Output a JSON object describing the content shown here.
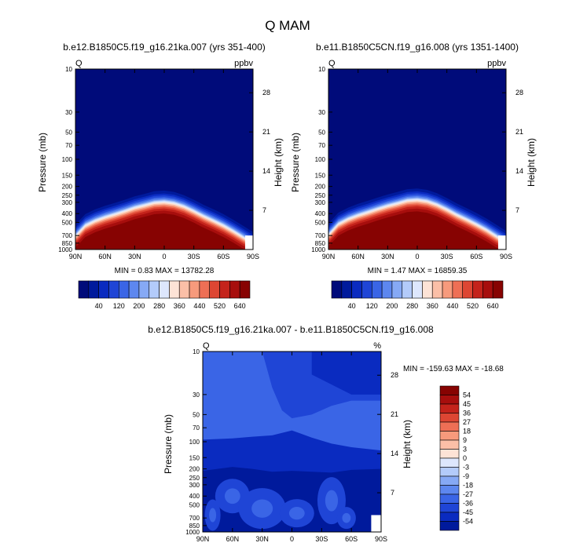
{
  "figure": {
    "title": "Q MAM"
  },
  "colors": {
    "main_scale": [
      "#000b7a",
      "#001a9c",
      "#0a2bc0",
      "#1f45d6",
      "#3a65e6",
      "#5d87ef",
      "#86a9f5",
      "#b3cbfa",
      "#dde7fd",
      "#fde3d6",
      "#fbbfa7",
      "#f79a7c",
      "#ee6f55",
      "#dd4633",
      "#c4231b",
      "#a70e0d",
      "#870302"
    ],
    "diff_scale": [
      "#001a9c",
      "#0a2bc0",
      "#1f45d6",
      "#3a65e6",
      "#5d87ef",
      "#86a9f5",
      "#b3cbfa",
      "#dde7fd",
      "#fde3d6",
      "#fbbfa7",
      "#f79a7c",
      "#ee6f55",
      "#dd4633",
      "#c4231b",
      "#a70e0d",
      "#870302"
    ]
  },
  "chart_data": [
    {
      "type": "heatmap",
      "title": "b.e12.B1850C5.f19_g16.21ka.007 (yrs 351-400)",
      "left_label": "Q",
      "right_label": "ppbv",
      "ylabel": "Pressure (mb)",
      "ylabel_right": "Height (km)",
      "x_ticks": [
        "90N",
        "60N",
        "30N",
        "0",
        "30S",
        "60S",
        "90S"
      ],
      "x_values": [
        90,
        60,
        30,
        0,
        -30,
        -60,
        -90
      ],
      "y_ticks": [
        "10",
        "30",
        "50",
        "70",
        "100",
        "150",
        "200",
        "250",
        "300",
        "400",
        "500",
        "700",
        "850",
        "1000"
      ],
      "y_values": [
        10,
        30,
        50,
        70,
        100,
        150,
        200,
        250,
        300,
        400,
        500,
        700,
        850,
        1000
      ],
      "height_ticks": [
        "28",
        "21",
        "14",
        "7"
      ],
      "height_values": [
        28,
        21,
        14,
        7
      ],
      "ylim": [
        10,
        1000
      ],
      "y_scale": "log",
      "stats": "MIN =   0.83   MAX = 13782.28",
      "colorbar_labels": [
        "40",
        "120",
        "200",
        "280",
        "360",
        "440",
        "520",
        "640"
      ],
      "levels": [
        20,
        40,
        80,
        120,
        160,
        200,
        240,
        280,
        320,
        360,
        400,
        440,
        480,
        520,
        580,
        640
      ],
      "moisture_boundary_hPa": [
        [
          90,
          680
        ],
        [
          80,
          520
        ],
        [
          70,
          460
        ],
        [
          60,
          420
        ],
        [
          50,
          390
        ],
        [
          40,
          360
        ],
        [
          30,
          330
        ],
        [
          20,
          310
        ],
        [
          10,
          290
        ],
        [
          0,
          285
        ],
        [
          -10,
          295
        ],
        [
          -20,
          320
        ],
        [
          -30,
          360
        ],
        [
          -40,
          410
        ],
        [
          -50,
          460
        ],
        [
          -60,
          520
        ],
        [
          -70,
          600
        ],
        [
          -80,
          700
        ],
        [
          -90,
          820
        ]
      ]
    },
    {
      "type": "heatmap",
      "title": "b.e11.B1850C5CN.f19_g16.008 (yrs 1351-1400)",
      "left_label": "Q",
      "right_label": "ppbv",
      "ylabel": "Pressure (mb)",
      "ylabel_right": "Height (km)",
      "x_ticks": [
        "90N",
        "60N",
        "30N",
        "0",
        "30S",
        "60S",
        "90S"
      ],
      "x_values": [
        90,
        60,
        30,
        0,
        -30,
        -60,
        -90
      ],
      "y_ticks": [
        "10",
        "30",
        "50",
        "70",
        "100",
        "150",
        "200",
        "250",
        "300",
        "400",
        "500",
        "700",
        "850",
        "1000"
      ],
      "y_values": [
        10,
        30,
        50,
        70,
        100,
        150,
        200,
        250,
        300,
        400,
        500,
        700,
        850,
        1000
      ],
      "height_ticks": [
        "28",
        "21",
        "14",
        "7"
      ],
      "height_values": [
        28,
        21,
        14,
        7
      ],
      "ylim": [
        10,
        1000
      ],
      "y_scale": "log",
      "stats": "MIN =   1.47   MAX = 16859.35",
      "colorbar_labels": [
        "40",
        "120",
        "200",
        "280",
        "360",
        "440",
        "520",
        "640"
      ],
      "levels": [
        20,
        40,
        80,
        120,
        160,
        200,
        240,
        280,
        320,
        360,
        400,
        440,
        480,
        520,
        580,
        640
      ],
      "moisture_boundary_hPa": [
        [
          90,
          660
        ],
        [
          80,
          500
        ],
        [
          70,
          440
        ],
        [
          60,
          400
        ],
        [
          50,
          370
        ],
        [
          40,
          340
        ],
        [
          30,
          315
        ],
        [
          20,
          295
        ],
        [
          10,
          275
        ],
        [
          0,
          270
        ],
        [
          -10,
          280
        ],
        [
          -20,
          305
        ],
        [
          -30,
          345
        ],
        [
          -40,
          395
        ],
        [
          -50,
          445
        ],
        [
          -60,
          505
        ],
        [
          -70,
          580
        ],
        [
          -80,
          680
        ],
        [
          -90,
          800
        ]
      ]
    },
    {
      "type": "heatmap",
      "title": "b.e12.B1850C5.f19_g16.21ka.007 - b.e11.B1850C5CN.f19_g16.008",
      "left_label": "Q",
      "right_label": "%",
      "ylabel": "Pressure (mb)",
      "ylabel_right": "Height (km)",
      "x_ticks": [
        "90N",
        "60N",
        "30N",
        "0",
        "30S",
        "60S",
        "90S"
      ],
      "x_values": [
        90,
        60,
        30,
        0,
        -30,
        -60,
        -90
      ],
      "y_ticks": [
        "10",
        "30",
        "50",
        "70",
        "100",
        "150",
        "200",
        "250",
        "300",
        "400",
        "500",
        "700",
        "850",
        "1000"
      ],
      "y_values": [
        10,
        30,
        50,
        70,
        100,
        150,
        200,
        250,
        300,
        400,
        500,
        700,
        850,
        1000
      ],
      "height_ticks": [
        "28",
        "21",
        "14",
        "7"
      ],
      "height_values": [
        28,
        21,
        14,
        7
      ],
      "ylim": [
        10,
        1000
      ],
      "y_scale": "log",
      "stats": "MIN = -159.63   MAX = -18.68",
      "colorbar_labels": [
        "54",
        "45",
        "36",
        "27",
        "18",
        "9",
        "3",
        "0",
        "-3",
        "-9",
        "-18",
        "-27",
        "-36",
        "-45",
        "-54"
      ],
      "levels": [
        -54,
        -45,
        -36,
        -27,
        -18,
        -9,
        -3,
        0,
        3,
        9,
        18,
        27,
        36,
        45,
        54
      ],
      "regions": {
        "upper_boundary_hPa": [
          [
            90,
            95
          ],
          [
            60,
            92
          ],
          [
            40,
            88
          ],
          [
            20,
            85
          ],
          [
            0,
            75
          ],
          [
            -20,
            90
          ],
          [
            -40,
            105
          ],
          [
            -60,
            115
          ],
          [
            -90,
            125
          ]
        ],
        "stratosphere_boundary_hPa": [
          [
            90,
            10
          ],
          [
            30,
            10
          ],
          [
            20,
            25
          ],
          [
            10,
            45
          ],
          [
            0,
            55
          ],
          [
            -20,
            50
          ],
          [
            -40,
            40
          ],
          [
            -60,
            35
          ],
          [
            -90,
            35
          ]
        ],
        "tropopause_band_hPa": [
          [
            90,
            210
          ],
          [
            60,
            190
          ],
          [
            40,
            200
          ],
          [
            20,
            215
          ],
          [
            0,
            210
          ],
          [
            -20,
            215
          ],
          [
            -40,
            220
          ],
          [
            -60,
            205
          ],
          [
            -90,
            200
          ]
        ]
      }
    }
  ]
}
